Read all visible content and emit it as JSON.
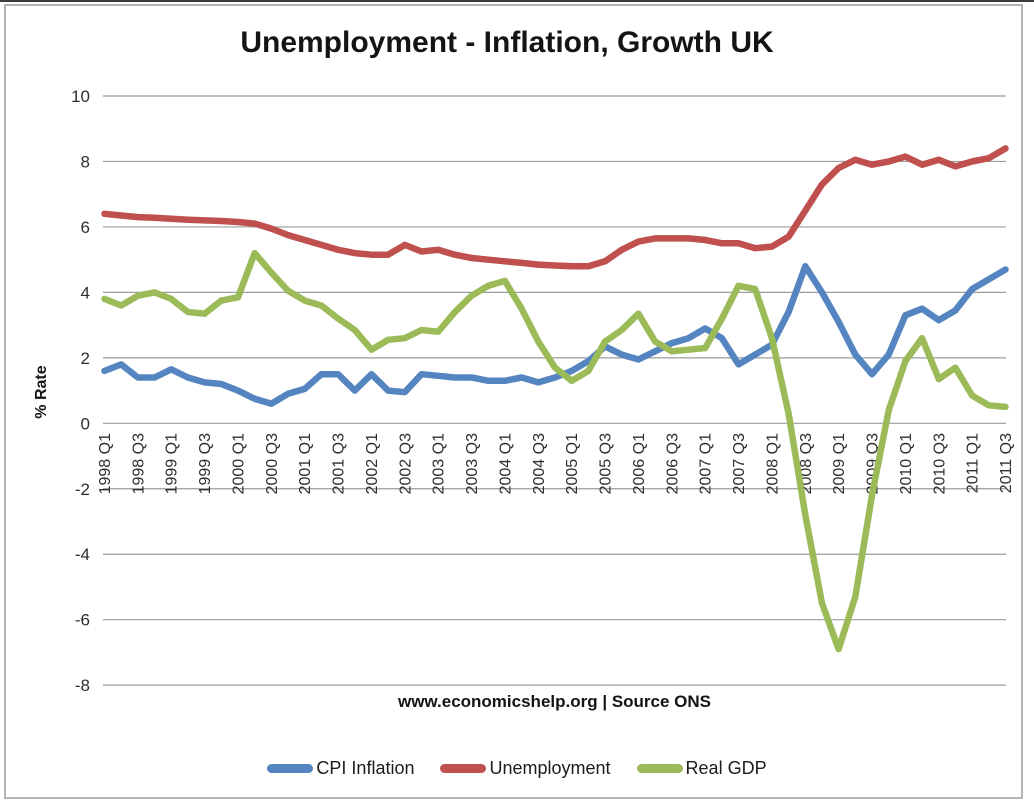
{
  "page": {
    "title": "Unemployment - Inflation, Growth UK",
    "source_line": "www.economicshelp.org | Source ONS"
  },
  "chart_data": {
    "type": "line",
    "title": "Unemployment - Inflation, Growth UK",
    "xlabel": "",
    "ylabel": "% Rate",
    "ylim": [
      -8,
      10
    ],
    "yticks": [
      10,
      8,
      6,
      4,
      2,
      0,
      -2,
      -4,
      -6,
      -8
    ],
    "grid": true,
    "gridline_color": "#9c9c9c",
    "axis_text_color": "#2e2e2e",
    "legend_position": "bottom",
    "x_tick_every": 2,
    "categories": [
      "1998 Q1",
      "1998 Q2",
      "1998 Q3",
      "1998 Q4",
      "1999 Q1",
      "1999 Q2",
      "1999 Q3",
      "1999 Q4",
      "2000 Q1",
      "2000 Q2",
      "2000 Q3",
      "2000 Q4",
      "2001 Q1",
      "2001 Q2",
      "2001 Q3",
      "2001 Q4",
      "2002 Q1",
      "2002 Q2",
      "2002 Q3",
      "2002 Q4",
      "2003 Q1",
      "2003 Q2",
      "2003 Q3",
      "2003 Q4",
      "2004 Q1",
      "2004 Q2",
      "2004 Q3",
      "2004 Q4",
      "2005 Q1",
      "2005 Q2",
      "2005 Q3",
      "2005 Q4",
      "2006 Q1",
      "2006 Q2",
      "2006 Q3",
      "2006 Q4",
      "2007 Q1",
      "2007 Q2",
      "2007 Q3",
      "2007 Q4",
      "2008 Q1",
      "2008 Q2",
      "2008 Q3",
      "2008 Q4",
      "2009 Q1",
      "2009 Q2",
      "2009 Q3",
      "2009 Q4",
      "2010 Q1",
      "2010 Q2",
      "2010 Q3",
      "2010 Q4",
      "2011 Q1",
      "2011 Q2",
      "2011 Q3"
    ],
    "series": [
      {
        "name": "CPI Inflation",
        "color": "#5585c0",
        "values": [
          1.6,
          1.8,
          1.4,
          1.4,
          1.65,
          1.4,
          1.25,
          1.2,
          1.0,
          0.75,
          0.6,
          0.9,
          1.05,
          1.5,
          1.5,
          1.0,
          1.5,
          1.0,
          0.95,
          1.5,
          1.45,
          1.4,
          1.4,
          1.3,
          1.3,
          1.4,
          1.25,
          1.4,
          1.6,
          1.9,
          2.35,
          2.1,
          1.95,
          2.2,
          2.45,
          2.6,
          2.9,
          2.6,
          1.8,
          2.1,
          2.4,
          3.4,
          4.8,
          4.0,
          3.1,
          2.1,
          1.5,
          2.1,
          3.3,
          3.5,
          3.15,
          3.45,
          4.1,
          4.4,
          4.7
        ]
      },
      {
        "name": "Unemployment",
        "color": "#c0504d",
        "values": [
          6.4,
          6.35,
          6.3,
          6.28,
          6.25,
          6.22,
          6.2,
          6.18,
          6.15,
          6.1,
          5.95,
          5.75,
          5.6,
          5.45,
          5.3,
          5.2,
          5.15,
          5.15,
          5.45,
          5.25,
          5.3,
          5.15,
          5.05,
          5.0,
          4.95,
          4.9,
          4.85,
          4.82,
          4.8,
          4.8,
          4.95,
          5.3,
          5.55,
          5.65,
          5.65,
          5.65,
          5.6,
          5.5,
          5.5,
          5.35,
          5.4,
          5.7,
          6.5,
          7.3,
          7.8,
          8.05,
          7.9,
          8.0,
          8.15,
          7.9,
          8.05,
          7.85,
          8.0,
          8.1,
          8.4
        ]
      },
      {
        "name": "Real GDP",
        "color": "#9bbb59",
        "values": [
          3.8,
          3.6,
          3.9,
          4.0,
          3.8,
          3.4,
          3.35,
          3.75,
          3.85,
          5.2,
          4.6,
          4.05,
          3.75,
          3.6,
          3.2,
          2.85,
          2.25,
          2.55,
          2.6,
          2.85,
          2.8,
          3.4,
          3.9,
          4.2,
          4.35,
          3.5,
          2.5,
          1.7,
          1.3,
          1.6,
          2.5,
          2.85,
          3.35,
          2.5,
          2.2,
          2.25,
          2.3,
          3.2,
          4.2,
          4.1,
          2.6,
          0.3,
          -2.8,
          -5.5,
          -6.9,
          -5.3,
          -2.2,
          0.4,
          1.9,
          2.6,
          1.35,
          1.7,
          0.85,
          0.55,
          0.5
        ]
      }
    ]
  }
}
